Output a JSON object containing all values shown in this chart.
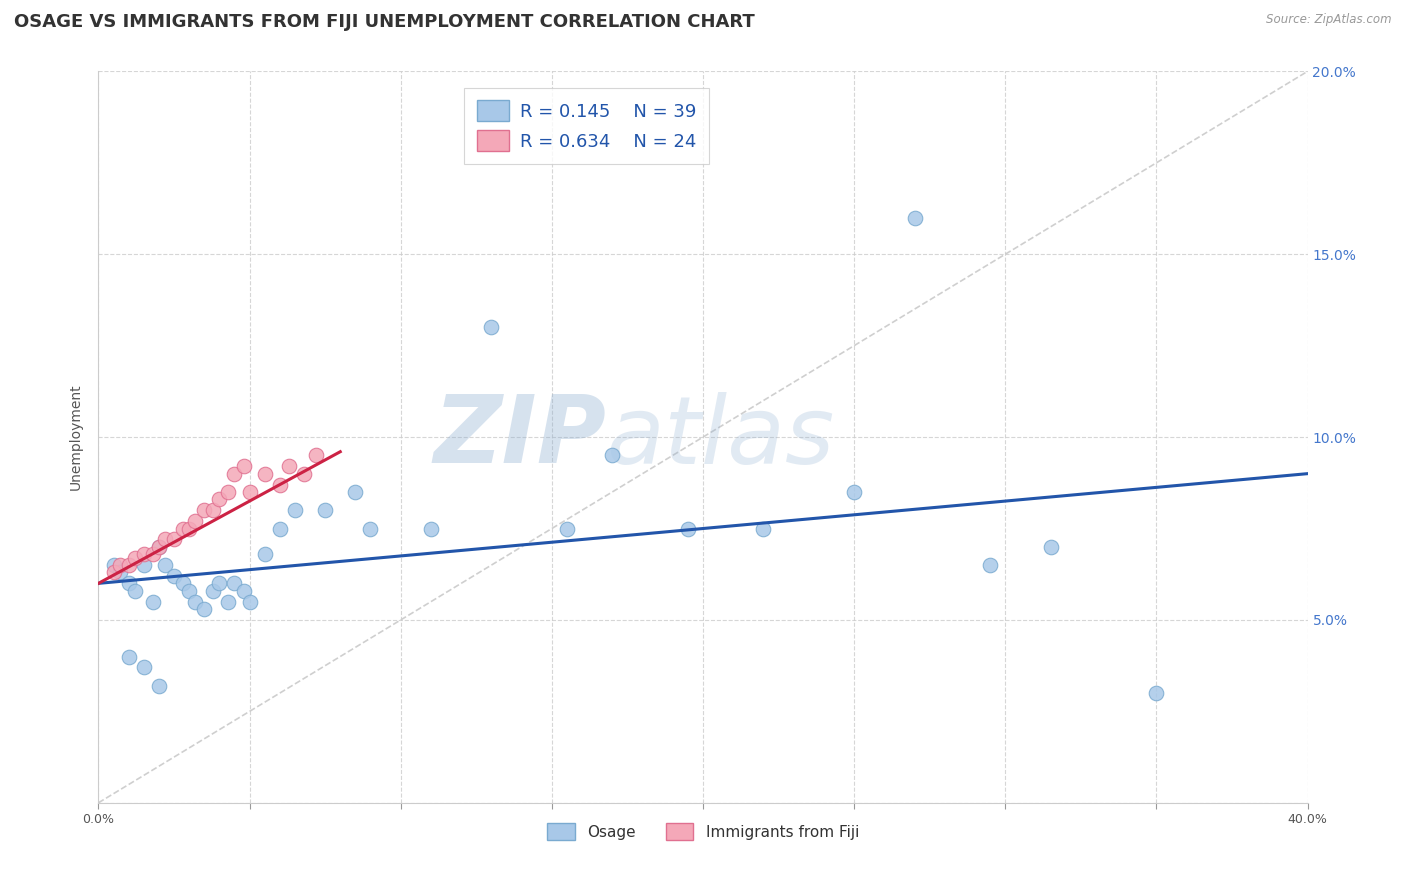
{
  "title": "OSAGE VS IMMIGRANTS FROM FIJI UNEMPLOYMENT CORRELATION CHART",
  "source": "Source: ZipAtlas.com",
  "ylabel": "Unemployment",
  "xlim": [
    0,
    0.4
  ],
  "ylim": [
    0,
    0.2
  ],
  "background_color": "#ffffff",
  "grid_color": "#cccccc",
  "osage_color": "#A8C8E8",
  "fiji_color": "#F4A8B8",
  "osage_edge": "#7AAAD0",
  "fiji_edge": "#E07090",
  "trend_osage_color": "#2255AA",
  "trend_fiji_color": "#CC2244",
  "diag_color": "#BBBBBB",
  "legend_r_osage": "R = 0.145",
  "legend_n_osage": "N = 39",
  "legend_r_fiji": "R = 0.634",
  "legend_n_fiji": "N = 24",
  "watermark_zip": "ZIP",
  "watermark_atlas": "atlas",
  "title_fontsize": 13,
  "label_fontsize": 10,
  "tick_fontsize": 9,
  "legend_fontsize": 13,
  "osage_x": [
    0.005,
    0.007,
    0.01,
    0.012,
    0.015,
    0.018,
    0.02,
    0.022,
    0.025,
    0.028,
    0.03,
    0.032,
    0.035,
    0.038,
    0.04,
    0.043,
    0.045,
    0.048,
    0.05,
    0.055,
    0.06,
    0.065,
    0.075,
    0.085,
    0.09,
    0.11,
    0.13,
    0.155,
    0.17,
    0.195,
    0.22,
    0.25,
    0.27,
    0.295,
    0.315,
    0.35,
    0.01,
    0.015,
    0.02
  ],
  "osage_y": [
    0.065,
    0.063,
    0.06,
    0.058,
    0.065,
    0.055,
    0.07,
    0.065,
    0.062,
    0.06,
    0.058,
    0.055,
    0.053,
    0.058,
    0.06,
    0.055,
    0.06,
    0.058,
    0.055,
    0.068,
    0.075,
    0.08,
    0.08,
    0.085,
    0.075,
    0.075,
    0.13,
    0.075,
    0.095,
    0.075,
    0.075,
    0.085,
    0.16,
    0.065,
    0.07,
    0.03,
    0.04,
    0.037,
    0.032
  ],
  "fiji_x": [
    0.005,
    0.007,
    0.01,
    0.012,
    0.015,
    0.018,
    0.02,
    0.022,
    0.025,
    0.028,
    0.03,
    0.032,
    0.035,
    0.038,
    0.04,
    0.043,
    0.045,
    0.048,
    0.05,
    0.055,
    0.06,
    0.063,
    0.068,
    0.072
  ],
  "fiji_y": [
    0.063,
    0.065,
    0.065,
    0.067,
    0.068,
    0.068,
    0.07,
    0.072,
    0.072,
    0.075,
    0.075,
    0.077,
    0.08,
    0.08,
    0.083,
    0.085,
    0.09,
    0.092,
    0.085,
    0.09,
    0.087,
    0.092,
    0.09,
    0.095
  ],
  "osage_trend_x": [
    0.0,
    0.4
  ],
  "osage_trend_y": [
    0.06,
    0.09
  ],
  "fiji_trend_x": [
    0.0,
    0.08
  ],
  "fiji_trend_y": [
    0.06,
    0.096
  ]
}
